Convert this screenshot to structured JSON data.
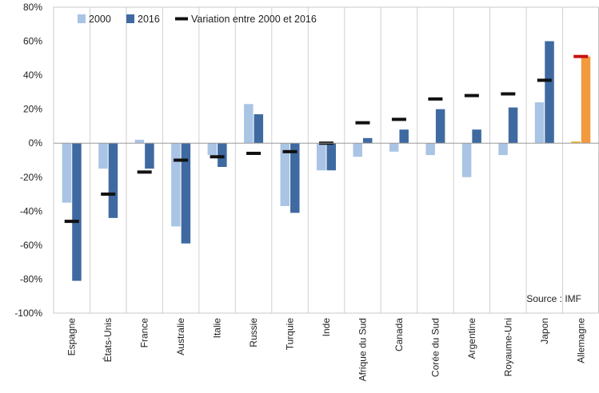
{
  "chart_data": {
    "type": "bar",
    "categories": [
      "Espagne",
      "États-Unis",
      "France",
      "Australie",
      "Italie",
      "Russie",
      "Turquie",
      "Inde",
      "Afrique du Sud",
      "Canada",
      "Corée du Sud",
      "Argentine",
      "Royaume-Uni",
      "Japon",
      "Allemagne"
    ],
    "series": [
      {
        "name": "2000",
        "values": [
          -35,
          -15,
          2,
          -49,
          -7,
          23,
          -37,
          -16,
          -8,
          -5,
          -7,
          -20,
          -7,
          24,
          1
        ],
        "color": "#a9c4e4"
      },
      {
        "name": "2016",
        "values": [
          -81,
          -44,
          -15,
          -59,
          -14,
          17,
          -41,
          -16,
          3,
          8,
          20,
          8,
          21,
          60,
          51
        ],
        "color": "#3f6aa1"
      },
      {
        "name": "Variation entre 2000 et 2016",
        "values": [
          -46,
          -30,
          -17,
          -10,
          -8,
          -6,
          -5,
          0,
          12,
          14,
          26,
          28,
          29,
          37,
          51
        ],
        "color": "#111111",
        "style": "dash-marker"
      }
    ],
    "highlight": {
      "category": "Allemagne",
      "colors": {
        "2000": "#e8b830",
        "2016": "#f19a3e",
        "Variation entre 2000 et 2016": "#cc1111"
      }
    },
    "ylim": [
      -100,
      80
    ],
    "yticks": [
      -100,
      -80,
      -60,
      -40,
      -20,
      0,
      20,
      40,
      60,
      80
    ],
    "tick_format": "percent",
    "xlabel": "",
    "ylabel": "",
    "title": "",
    "source": "Source : IMF",
    "legend_position": "top-left",
    "grid": "vertical"
  }
}
